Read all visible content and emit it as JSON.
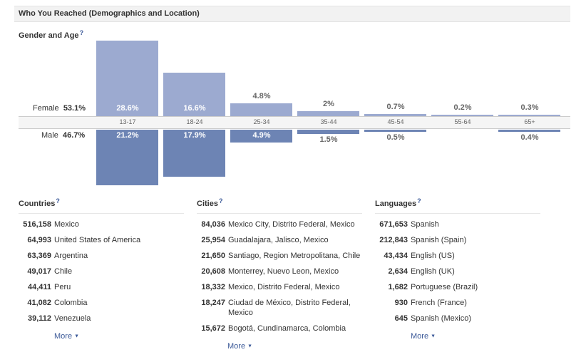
{
  "header": {
    "title": "Who You Reached (Demographics and Location)"
  },
  "gender_age": {
    "title": "Gender and Age",
    "help": "?",
    "female_label": "Female",
    "female_pct": "53.1%",
    "male_label": "Male",
    "male_pct": "46.7%"
  },
  "chart_data": {
    "type": "bar",
    "categories": [
      "13-17",
      "18-24",
      "25-34",
      "35-44",
      "45-54",
      "55-64",
      "65+"
    ],
    "series": [
      {
        "name": "Female",
        "values": [
          28.6,
          16.6,
          4.8,
          2,
          0.7,
          0.2,
          0.3
        ],
        "labels": [
          "28.6%",
          "16.6%",
          "4.8%",
          "2%",
          "0.7%",
          "0.2%",
          "0.3%"
        ],
        "color": "#9caad0"
      },
      {
        "name": "Male",
        "values": [
          21.2,
          17.9,
          4.9,
          1.5,
          0.5,
          0,
          0.4
        ],
        "labels": [
          "21.2%",
          "17.9%",
          "4.9%",
          "1.5%",
          "0.5%",
          "",
          "0.4%"
        ],
        "color": "#6d84b4"
      }
    ]
  },
  "countries": {
    "title": "Countries",
    "help": "?",
    "items": [
      {
        "num": "516,158",
        "name": "Mexico"
      },
      {
        "num": "64,993",
        "name": "United States of America"
      },
      {
        "num": "63,369",
        "name": "Argentina"
      },
      {
        "num": "49,017",
        "name": "Chile"
      },
      {
        "num": "44,411",
        "name": "Peru"
      },
      {
        "num": "41,082",
        "name": "Colombia"
      },
      {
        "num": "39,112",
        "name": "Venezuela"
      }
    ],
    "more": "More"
  },
  "cities": {
    "title": "Cities",
    "help": "?",
    "items": [
      {
        "num": "84,036",
        "name": "Mexico City, Distrito Federal, Mexico"
      },
      {
        "num": "25,954",
        "name": "Guadalajara, Jalisco, Mexico"
      },
      {
        "num": "21,650",
        "name": "Santiago, Region Metropolitana, Chile"
      },
      {
        "num": "20,608",
        "name": "Monterrey, Nuevo Leon, Mexico"
      },
      {
        "num": "18,332",
        "name": "Mexico, Distrito Federal, Mexico"
      },
      {
        "num": "18,247",
        "name": "Ciudad de México, Distrito Federal, Mexico"
      },
      {
        "num": "15,672",
        "name": "Bogotá, Cundinamarca, Colombia"
      }
    ],
    "more": "More"
  },
  "languages": {
    "title": "Languages",
    "help": "?",
    "items": [
      {
        "num": "671,653",
        "name": "Spanish"
      },
      {
        "num": "212,843",
        "name": "Spanish (Spain)"
      },
      {
        "num": "43,434",
        "name": "English (US)"
      },
      {
        "num": "2,634",
        "name": "English (UK)"
      },
      {
        "num": "1,682",
        "name": "Portuguese (Brazil)"
      },
      {
        "num": "930",
        "name": "French (France)"
      },
      {
        "num": "645",
        "name": "Spanish (Mexico)"
      }
    ],
    "more": "More"
  },
  "colors": {
    "link": "#3b5998",
    "female": "#9caad0",
    "male": "#6d84b4"
  }
}
